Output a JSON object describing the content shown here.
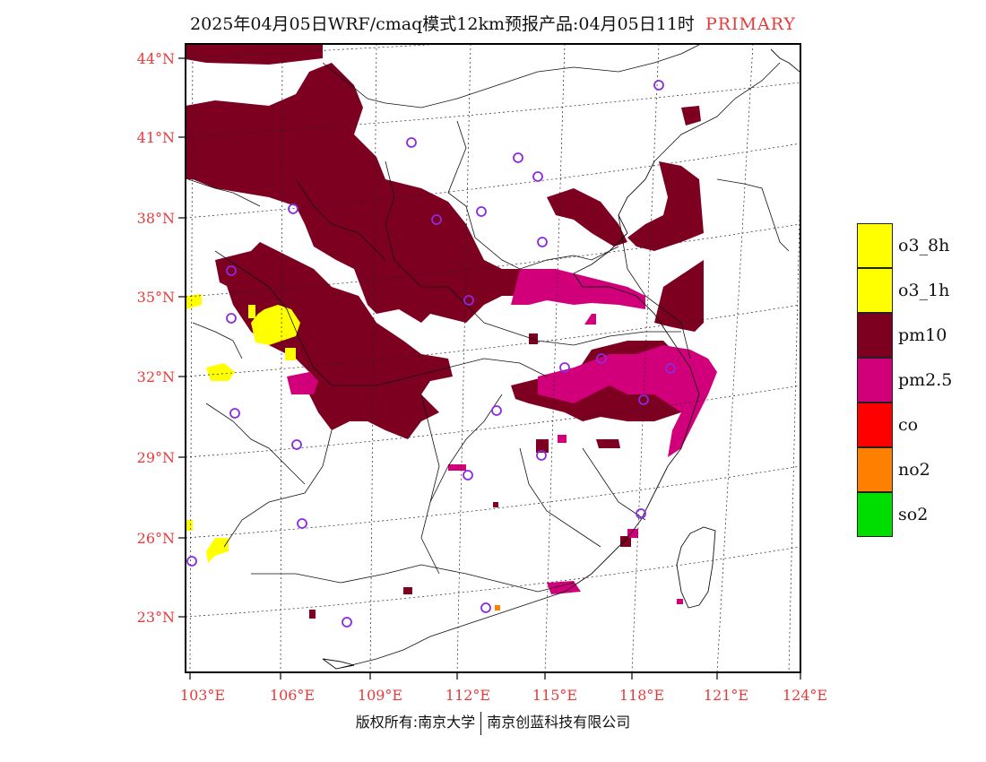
{
  "header": {
    "title": "2025年04月05日WRF/cmaq模式12km预报产品:04月05日11时",
    "badge": "PRIMARY",
    "badge_color": "#e83a3a"
  },
  "axes": {
    "lat_labels": [
      "44°N",
      "41°N",
      "38°N",
      "35°N",
      "32°N",
      "29°N",
      "26°N",
      "23°N"
    ],
    "lon_labels": [
      "103°E",
      "106°E",
      "109°E",
      "112°E",
      "115°E",
      "118°E",
      "121°E",
      "124°E"
    ],
    "label_color": "#e83a3a"
  },
  "legend": {
    "items": [
      {
        "label": "o3_8h",
        "color": "#ffff00"
      },
      {
        "label": "o3_1h",
        "color": "#ffff00"
      },
      {
        "label": "pm10",
        "color": "#7d0020"
      },
      {
        "label": "pm2.5",
        "color": "#d1007a"
      },
      {
        "label": "co",
        "color": "#ff0000"
      },
      {
        "label": "no2",
        "color": "#ff7f00"
      },
      {
        "label": "so2",
        "color": "#00dd00"
      }
    ]
  },
  "footer": {
    "left": "版权所有:南京大学",
    "right": "南京创蓝科技有限公司"
  },
  "pollutant_colors": {
    "pm10": "#7d0020",
    "pm25": "#d1007a",
    "o3": "#ffff00",
    "no2": "#ff7f00",
    "station_marker": "#8a2be2"
  }
}
